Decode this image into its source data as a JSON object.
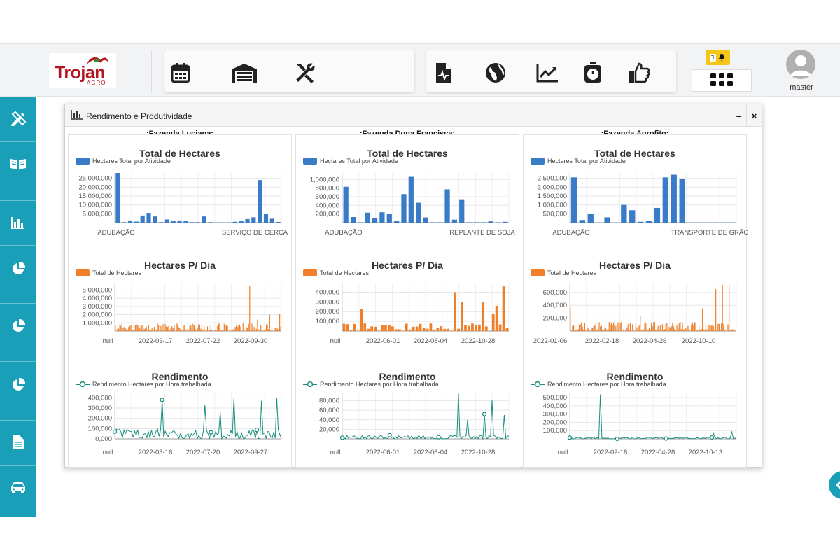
{
  "brand": {
    "name": "Trojan",
    "sub": "AGRO"
  },
  "toolbar": {
    "group1": [
      "calendar-icon",
      "garage-icon",
      "tools-icon"
    ],
    "group2": [
      "file-medical-icon",
      "globe-icon",
      "chart-line-icon",
      "stopwatch-icon",
      "thumbs-up-icon"
    ]
  },
  "notification": {
    "count": "1"
  },
  "user": {
    "name": "master"
  },
  "colors": {
    "teal": "#1a9fb8",
    "bar": "#3a7bc8",
    "orange": "#f07f2a",
    "line": "#188f7f"
  },
  "window": {
    "title": "Rendimento e Produtividade",
    "minimize": "–",
    "close": "×"
  },
  "farms": [
    {
      "name": ".:Fazenda Luciana:.",
      "total": {
        "title": "Total de Hectares",
        "legend": "Hectares Total por Atividade",
        "yticks": [
          "25,000,000",
          "20,000,000",
          "15,000,000",
          "10,000,000",
          "5,000,000"
        ],
        "ymax": 28000000,
        "xlabels": [
          "ADUBAÇÃO",
          "SERVIÇO DE CERCA"
        ],
        "values": [
          28000000,
          300000,
          1200000,
          600000,
          4000000,
          5500000,
          3500000,
          300000,
          1800000,
          1000000,
          1200000,
          900000,
          300000,
          300000,
          3500000,
          300000,
          200000,
          100000,
          200000,
          500000,
          1000000,
          2000000,
          3000000,
          24000000,
          5000000,
          2200000,
          400000
        ]
      },
      "perday": {
        "title": "Hectares P/ Dia",
        "legend": "Total de Hectares",
        "yticks": [
          "5,000,000",
          "4,000,000",
          "3,000,000",
          "2,000,000",
          "1,000,000"
        ],
        "ymax": 5800000,
        "xlabels": [
          "null",
          "2022-03-17",
          "2022-07-22",
          "2022-09-30"
        ],
        "peaks": [
          [
            0.81,
            5500000
          ],
          [
            0.93,
            2000000
          ],
          [
            0.99,
            2100000
          ],
          [
            0.86,
            1400000
          ]
        ],
        "base": 600000
      },
      "rend": {
        "title": "Rendimento",
        "legend": "Rendimento Hectares por Hora trabalhada",
        "yticks": [
          "400,000",
          "300,000",
          "200,000",
          "100,000",
          "0,000"
        ],
        "ymax": 450000,
        "xlabels": [
          "null",
          "2022-03-16",
          "2022-07-20",
          "2022-09-27"
        ],
        "peaks": [
          [
            0.28,
            380000
          ],
          [
            0.54,
            330000
          ],
          [
            0.72,
            400000
          ],
          [
            0.88,
            370000
          ],
          [
            0.97,
            400000
          ],
          [
            0.63,
            260000
          ]
        ],
        "base": 60000
      }
    },
    {
      "name": ".:Fazenda Dona Francisca:.",
      "total": {
        "title": "Total de Hectares",
        "legend": "Hectares Total por Atividade",
        "yticks": [
          "1,000,000",
          "800,000",
          "600,000",
          "400,000",
          "200,000"
        ],
        "ymax": 1150000,
        "xlabels": [
          "ADUBAÇÃO",
          "REPLANTE DE SOJA"
        ],
        "values": [
          830000,
          130000,
          10000,
          230000,
          100000,
          240000,
          210000,
          40000,
          660000,
          1060000,
          460000,
          120000,
          10000,
          10000,
          770000,
          70000,
          540000,
          10000,
          10000,
          10000,
          30000,
          10000,
          20000
        ]
      },
      "perday": {
        "title": "Hectares P/ Dia",
        "legend": "Total de Hectares",
        "yticks": [
          "400,000",
          "300,000",
          "200,000",
          "100,000"
        ],
        "ymax": 490000,
        "xlabels": [
          "null",
          "2022-06-01",
          "2022-08-04",
          "2022-10-28"
        ],
        "peaks": [
          [
            0.68,
            400000
          ],
          [
            0.72,
            300000
          ],
          [
            0.86,
            300000
          ],
          [
            0.94,
            260000
          ],
          [
            0.98,
            460000
          ],
          [
            0.1,
            230000
          ],
          [
            0.91,
            180000
          ]
        ],
        "base": 50000
      },
      "rend": {
        "title": "Rendimento",
        "legend": "Rendimento Hectares por Hora trabalhada",
        "yticks": [
          "80,000",
          "60,000",
          "40,000",
          "20,000"
        ],
        "ymax": 97000,
        "xlabels": [
          "null",
          "2022-06-01",
          "2022-08-04",
          "2022-10-28"
        ],
        "peaks": [
          [
            0.7,
            95000
          ],
          [
            0.85,
            52000
          ],
          [
            0.9,
            81000
          ],
          [
            0.97,
            50000
          ],
          [
            0.75,
            40000
          ]
        ],
        "base": 5000
      }
    },
    {
      "name": ".:Fazenda Agrofito:.",
      "total": {
        "title": "Total de Hectares",
        "legend": "Hectares Total por Atividade",
        "yticks": [
          "2,500,000",
          "2,000,000",
          "1,500,000",
          "1,000,000",
          "500,000"
        ],
        "ymax": 2800000,
        "xlabels": [
          "ADUBAÇÃO",
          "TRANSPORTE DE GRÃO"
        ],
        "values": [
          2550000,
          150000,
          500000,
          10000,
          300000,
          10000,
          1000000,
          700000,
          50000,
          80000,
          830000,
          2550000,
          2700000,
          2450000,
          10000,
          10000,
          10000,
          10000,
          10000,
          10000
        ]
      },
      "perday": {
        "title": "Hectares P/ Dia",
        "legend": "Total de Hectares",
        "yticks": [
          "600,000",
          "400,000",
          "200,000"
        ],
        "ymax": 740000,
        "xlabels": [
          "2022-01-06",
          "2022-02-18",
          "2022-04-26",
          "2022-10-10"
        ],
        "peaks": [
          [
            0.88,
            650000
          ],
          [
            0.92,
            720000
          ],
          [
            0.96,
            720000
          ],
          [
            0.0,
            380000
          ],
          [
            0.8,
            350000
          ],
          [
            0.42,
            230000
          ]
        ],
        "base": 90000
      },
      "rend": {
        "title": "Rendimento",
        "legend": "Rendimento Hectares por Hora trabalhada",
        "yticks": [
          "500,000",
          "400,000",
          "300,000",
          "200,000",
          "100,000"
        ],
        "ymax": 560000,
        "xlabels": [
          "null",
          "2022-02-18",
          "2022-04-28",
          "2022-10-13"
        ],
        "peaks": [
          [
            0.18,
            540000
          ],
          [
            0.86,
            70000
          ],
          [
            0.97,
            90000
          ]
        ],
        "base": 12000
      }
    }
  ]
}
